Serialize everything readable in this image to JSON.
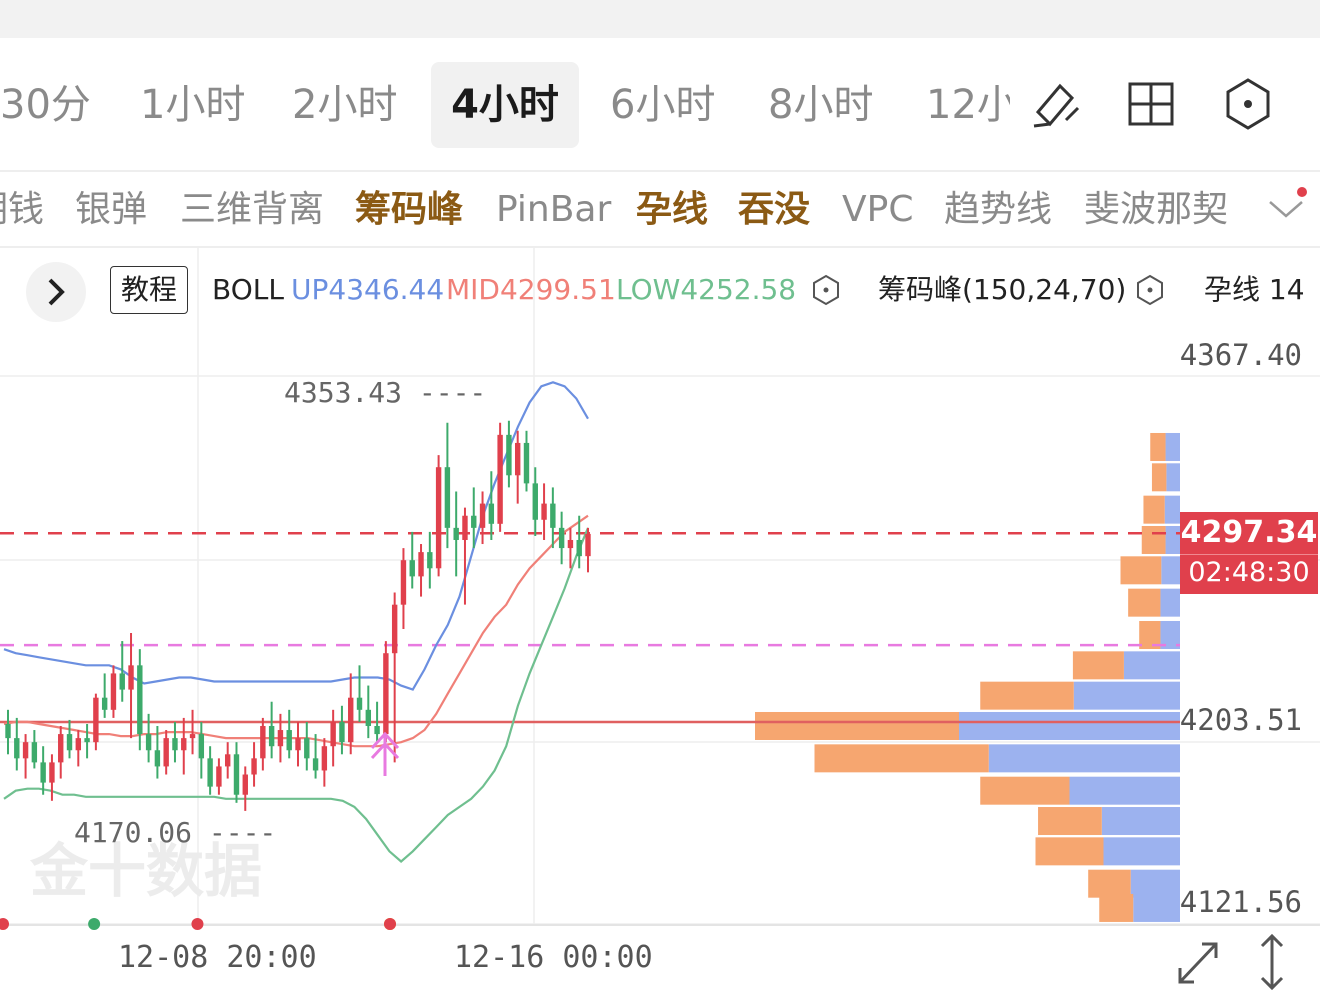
{
  "timeframes": [
    {
      "label": "30分"
    },
    {
      "label": "1小时"
    },
    {
      "label": "2小时"
    },
    {
      "label": "4小时",
      "active": true
    },
    {
      "label": "6小时"
    },
    {
      "label": "8小时"
    },
    {
      "label": "12小"
    }
  ],
  "tool_icons": [
    "draw-pen-icon",
    "grid-layout-icon",
    "hexagon-settings-icon"
  ],
  "indicators": [
    {
      "label": "期钱",
      "highlight": false
    },
    {
      "label": "银弹",
      "highlight": false
    },
    {
      "label": "三维背离",
      "highlight": false
    },
    {
      "label": "筹码峰",
      "highlight": true
    },
    {
      "label": "PinBar",
      "highlight": false
    },
    {
      "label": "孕线",
      "highlight": true
    },
    {
      "label": "吞没",
      "highlight": true
    },
    {
      "label": "VPC",
      "highlight": false
    },
    {
      "label": "趋势线",
      "highlight": false
    },
    {
      "label": "斐波那契",
      "highlight": false
    }
  ],
  "info": {
    "tutorial_label": "教程",
    "boll_label": "BOLL",
    "boll_up": "UP4346.44",
    "boll_mid": "MID4299.51",
    "boll_low": "LOW4252.58",
    "chip_label": "筹码峰(150,24,70)",
    "pregnant_label": "孕线 14"
  },
  "colors": {
    "up": "#e0404c",
    "down": "#3daa6b",
    "boll_up": "#6b8fe0",
    "boll_mid": "#f08078",
    "boll_low": "#6fbf8f",
    "chip_orange": "#f6a670",
    "chip_blue": "#9cb2ef",
    "highlight_text": "#8b5a14"
  },
  "price_axis": [
    {
      "label": "4367.40",
      "value": 4367.4
    },
    {
      "label": "4203.51",
      "value": 4203.51
    },
    {
      "label": "4121.56",
      "value": 4121.56
    }
  ],
  "current_price": {
    "value": "4297.34",
    "countdown": "02:48:30"
  },
  "annotations": [
    {
      "text": "4353.43 ----",
      "value": 4353.43,
      "kind": "high"
    },
    {
      "text": "4170.06 ----",
      "value": 4170.06,
      "kind": "low"
    }
  ],
  "date_labels": [
    "12-08 20:00",
    "12-16 00:00"
  ],
  "watermark": "金十数据",
  "chart_data": {
    "type": "candlestick",
    "ylim": [
      4110,
      4385
    ],
    "candles": [
      [
        4203,
        4210,
        4188,
        4196
      ],
      [
        4196,
        4206,
        4180,
        4186
      ],
      [
        4186,
        4198,
        4176,
        4194
      ],
      [
        4194,
        4200,
        4181,
        4184
      ],
      [
        4184,
        4192,
        4168,
        4174
      ],
      [
        4174,
        4188,
        4165,
        4184
      ],
      [
        4184,
        4202,
        4176,
        4198
      ],
      [
        4198,
        4205,
        4186,
        4190
      ],
      [
        4190,
        4200,
        4182,
        4196
      ],
      [
        4196,
        4203,
        4186,
        4194
      ],
      [
        4194,
        4218,
        4190,
        4216
      ],
      [
        4216,
        4228,
        4206,
        4210
      ],
      [
        4210,
        4232,
        4206,
        4228
      ],
      [
        4228,
        4244,
        4214,
        4220
      ],
      [
        4220,
        4248,
        4196,
        4232
      ],
      [
        4232,
        4240,
        4190,
        4198
      ],
      [
        4198,
        4208,
        4184,
        4190
      ],
      [
        4190,
        4202,
        4176,
        4182
      ],
      [
        4182,
        4200,
        4178,
        4196
      ],
      [
        4196,
        4204,
        4184,
        4190
      ],
      [
        4190,
        4206,
        4178,
        4196
      ],
      [
        4196,
        4210,
        4188,
        4198
      ],
      [
        4198,
        4204,
        4176,
        4186
      ],
      [
        4186,
        4192,
        4168,
        4172
      ],
      [
        4172,
        4186,
        4168,
        4182
      ],
      [
        4182,
        4194,
        4176,
        4188
      ],
      [
        4188,
        4194,
        4164,
        4168
      ],
      [
        4168,
        4182,
        4160,
        4178
      ],
      [
        4178,
        4194,
        4172,
        4186
      ],
      [
        4186,
        4206,
        4180,
        4202
      ],
      [
        4202,
        4214,
        4186,
        4192
      ],
      [
        4192,
        4208,
        4184,
        4200
      ],
      [
        4200,
        4210,
        4186,
        4190
      ],
      [
        4190,
        4204,
        4182,
        4196
      ],
      [
        4196,
        4204,
        4180,
        4186
      ],
      [
        4186,
        4198,
        4176,
        4180
      ],
      [
        4180,
        4196,
        4172,
        4192
      ],
      [
        4192,
        4210,
        4182,
        4204
      ],
      [
        4204,
        4212,
        4188,
        4194
      ],
      [
        4194,
        4228,
        4188,
        4216
      ],
      [
        4216,
        4232,
        4204,
        4210
      ],
      [
        4210,
        4222,
        4196,
        4202
      ],
      [
        4202,
        4214,
        4194,
        4198
      ],
      [
        4198,
        4244,
        4194,
        4238
      ],
      [
        4238,
        4268,
        4184,
        4262
      ],
      [
        4262,
        4290,
        4250,
        4284
      ],
      [
        4284,
        4298,
        4270,
        4276
      ],
      [
        4276,
        4292,
        4266,
        4288
      ],
      [
        4288,
        4298,
        4270,
        4280
      ],
      [
        4280,
        4336,
        4276,
        4330
      ],
      [
        4330,
        4352,
        4290,
        4300
      ],
      [
        4300,
        4318,
        4276,
        4294
      ],
      [
        4294,
        4310,
        4262,
        4306
      ],
      [
        4306,
        4320,
        4290,
        4300
      ],
      [
        4300,
        4318,
        4292,
        4312
      ],
      [
        4312,
        4328,
        4294,
        4302
      ],
      [
        4302,
        4352,
        4298,
        4346
      ],
      [
        4346,
        4353,
        4320,
        4326
      ],
      [
        4326,
        4348,
        4312,
        4342
      ],
      [
        4342,
        4348,
        4318,
        4322
      ],
      [
        4322,
        4330,
        4296,
        4304
      ],
      [
        4304,
        4322,
        4294,
        4312
      ],
      [
        4312,
        4320,
        4290,
        4300
      ],
      [
        4300,
        4308,
        4282,
        4290
      ],
      [
        4290,
        4300,
        4280,
        4294
      ],
      [
        4294,
        4306,
        4280,
        4286
      ],
      [
        4286,
        4300,
        4278,
        4297
      ]
    ],
    "boll_upper": [
      4240,
      4238,
      4237,
      4236,
      4235,
      4234,
      4233,
      4232,
      4232,
      4232,
      4230,
      4226,
      4223,
      4224,
      4225,
      4226,
      4226,
      4225,
      4224,
      4224,
      4224,
      4224,
      4224,
      4224,
      4224,
      4224,
      4224,
      4224,
      4224,
      4225,
      4226,
      4226,
      4226,
      4225,
      4222,
      4220,
      4230,
      4242,
      4252,
      4266,
      4286,
      4306,
      4322,
      4336,
      4350,
      4362,
      4370,
      4372,
      4370,
      4364,
      4354
    ],
    "boll_mid": [
      4203,
      4204,
      4204,
      4203,
      4202,
      4201,
      4200,
      4199,
      4198,
      4198,
      4197,
      4197,
      4198,
      4198,
      4199,
      4199,
      4199,
      4198,
      4197,
      4196,
      4196,
      4196,
      4196,
      4196,
      4196,
      4196,
      4196,
      4195,
      4194,
      4193,
      4192,
      4192,
      4192,
      4193,
      4194,
      4196,
      4200,
      4208,
      4218,
      4228,
      4238,
      4248,
      4256,
      4262,
      4272,
      4280,
      4286,
      4292,
      4298,
      4302,
      4306
    ],
    "boll_lower": [
      4166,
      4170,
      4171,
      4171,
      4170,
      4168,
      4168,
      4167,
      4167,
      4167,
      4167,
      4167,
      4167,
      4167,
      4167,
      4167,
      4167,
      4167,
      4167,
      4166,
      4166,
      4166,
      4166,
      4166,
      4166,
      4166,
      4166,
      4166,
      4166,
      4165,
      4162,
      4156,
      4148,
      4140,
      4135,
      4140,
      4146,
      4152,
      4158,
      4162,
      4166,
      4172,
      4180,
      4192,
      4212,
      4228,
      4242,
      4256,
      4270,
      4286,
      4300
    ],
    "horizontal_lines": [
      {
        "value": 4297.34,
        "style": "dashed",
        "color": "#e0404c"
      },
      {
        "value": 4242,
        "style": "dashed",
        "color": "#e87ae0"
      },
      {
        "value": 4204,
        "style": "solid",
        "color": "#e06060"
      }
    ],
    "volume_profile": [
      {
        "price": 4340,
        "orange": 0.18,
        "blue": 0.17
      },
      {
        "price": 4325,
        "orange": 0.17,
        "blue": 0.16
      },
      {
        "price": 4309,
        "orange": 0.25,
        "blue": 0.18
      },
      {
        "price": 4294,
        "orange": 0.28,
        "blue": 0.17
      },
      {
        "price": 4279,
        "orange": 0.48,
        "blue": 0.22
      },
      {
        "price": 4263,
        "orange": 0.38,
        "blue": 0.23
      },
      {
        "price": 4247,
        "orange": 0.25,
        "blue": 0.23
      },
      {
        "price": 4232,
        "orange": 0.6,
        "blue": 0.66
      },
      {
        "price": 4217,
        "orange": 1.1,
        "blue": 1.25
      },
      {
        "price": 4202,
        "orange": 2.4,
        "blue": 2.6
      },
      {
        "price": 4186,
        "orange": 2.05,
        "blue": 2.25
      },
      {
        "price": 4170,
        "orange": 1.05,
        "blue": 1.3
      },
      {
        "price": 4155,
        "orange": 0.75,
        "blue": 0.92
      },
      {
        "price": 4140,
        "orange": 0.8,
        "blue": 0.9
      },
      {
        "price": 4124,
        "orange": 0.5,
        "blue": 0.58
      },
      {
        "price": 4112,
        "orange": 0.4,
        "blue": 0.55
      }
    ],
    "signals": [
      {
        "index": 0,
        "color": "#e0404c"
      },
      {
        "index": 10,
        "color": "#3daa6b"
      },
      {
        "index": 22,
        "color": "#e0404c"
      },
      {
        "index": 59,
        "color": "#f2b000"
      },
      {
        "index": 68,
        "color": "#e0404c"
      }
    ]
  }
}
